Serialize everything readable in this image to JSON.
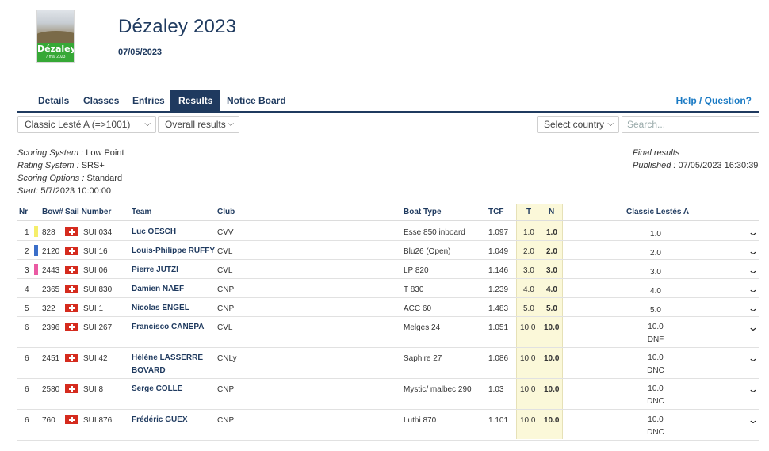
{
  "event": {
    "title": "Dézaley 2023",
    "date": "07/05/2023"
  },
  "logo": {
    "text": "Dézaley",
    "date": "7 mai 2023"
  },
  "tabs": [
    {
      "label": "Details"
    },
    {
      "label": "Classes"
    },
    {
      "label": "Entries"
    },
    {
      "label": "Results",
      "active": true
    },
    {
      "label": "Notice Board"
    }
  ],
  "help_label": "Help / Question?",
  "filters": {
    "class_select": "Classic Lesté A (=>1001)",
    "results_select": "Overall results",
    "country_select": "Select country",
    "search_placeholder": "Search..."
  },
  "meta": {
    "scoring_system_label": "Scoring System :",
    "scoring_system": "Low Point",
    "rating_system_label": "Rating System :",
    "rating_system": "SRS+",
    "scoring_options_label": "Scoring Options :",
    "scoring_options": "Standard",
    "start_label": "Start:",
    "start": "5/7/2023 10:00:00",
    "final_results": "Final results",
    "published_label": "Published :",
    "published": "07/05/2023 16:30:39"
  },
  "columns": {
    "nr": "Nr",
    "bow": "Bow#",
    "sail": "Sail Number",
    "team": "Team",
    "club": "Club",
    "boat_type": "Boat Type",
    "tcf": "TCF",
    "t": "T",
    "n": "N",
    "race": "Classic Lestés A"
  },
  "colors": {
    "primary": "#1f3a5f",
    "link": "#1a7ac4",
    "highlight": "#fbf8d9",
    "gold": "#f5ee6a",
    "silver": "#3b6fc9",
    "bronze": "#ea5aa3"
  },
  "rows": [
    {
      "nr": "1",
      "bow": "828",
      "sail": "SUI 034",
      "team": "Luc OESCH",
      "club": "CVV",
      "boat": "Esse 850 inboard",
      "tcf": "1.097",
      "t": "1.0",
      "n": "1.0",
      "score": "1.0",
      "code": "",
      "medal": "gold"
    },
    {
      "nr": "2",
      "bow": "2120",
      "sail": "SUI 16",
      "team": "Louis-Philippe RUFFY",
      "club": "CVL",
      "boat": "Blu26 (Open)",
      "tcf": "1.049",
      "t": "2.0",
      "n": "2.0",
      "score": "2.0",
      "code": "",
      "medal": "silver"
    },
    {
      "nr": "3",
      "bow": "2443",
      "sail": "SUI 06",
      "team": "Pierre JUTZI",
      "club": "CVL",
      "boat": "LP 820",
      "tcf": "1.146",
      "t": "3.0",
      "n": "3.0",
      "score": "3.0",
      "code": "",
      "medal": "bronze"
    },
    {
      "nr": "4",
      "bow": "2365",
      "sail": "SUI 830",
      "team": "Damien NAEF",
      "club": "CNP",
      "boat": "T 830",
      "tcf": "1.239",
      "t": "4.0",
      "n": "4.0",
      "score": "4.0",
      "code": "",
      "medal": ""
    },
    {
      "nr": "5",
      "bow": "322",
      "sail": "SUI 1",
      "team": "Nicolas ENGEL",
      "club": "CNP",
      "boat": "ACC 60",
      "tcf": "1.483",
      "t": "5.0",
      "n": "5.0",
      "score": "5.0",
      "code": "",
      "medal": ""
    },
    {
      "nr": "6",
      "bow": "2396",
      "sail": "SUI 267",
      "team": "Francisco CANEPA",
      "club": "CVL",
      "boat": "Melges 24",
      "tcf": "1.051",
      "t": "10.0",
      "n": "10.0",
      "score": "10.0",
      "code": "DNF",
      "medal": ""
    },
    {
      "nr": "6",
      "bow": "2451",
      "sail": "SUI 42",
      "team": "Hélène LASSERRE BOVARD",
      "club": "CNLy",
      "boat": "Saphire 27",
      "tcf": "1.086",
      "t": "10.0",
      "n": "10.0",
      "score": "10.0",
      "code": "DNC",
      "medal": ""
    },
    {
      "nr": "6",
      "bow": "2580",
      "sail": "SUI 8",
      "team": "Serge COLLE",
      "club": "CNP",
      "boat": "Mystic/ malbec 290",
      "tcf": "1.03",
      "t": "10.0",
      "n": "10.0",
      "score": "10.0",
      "code": "DNC",
      "medal": ""
    },
    {
      "nr": "6",
      "bow": "760",
      "sail": "SUI 876",
      "team": "Frédéric GUEX",
      "club": "CNP",
      "boat": "Luthi 870",
      "tcf": "1.101",
      "t": "10.0",
      "n": "10.0",
      "score": "10.0",
      "code": "DNC",
      "medal": ""
    }
  ]
}
